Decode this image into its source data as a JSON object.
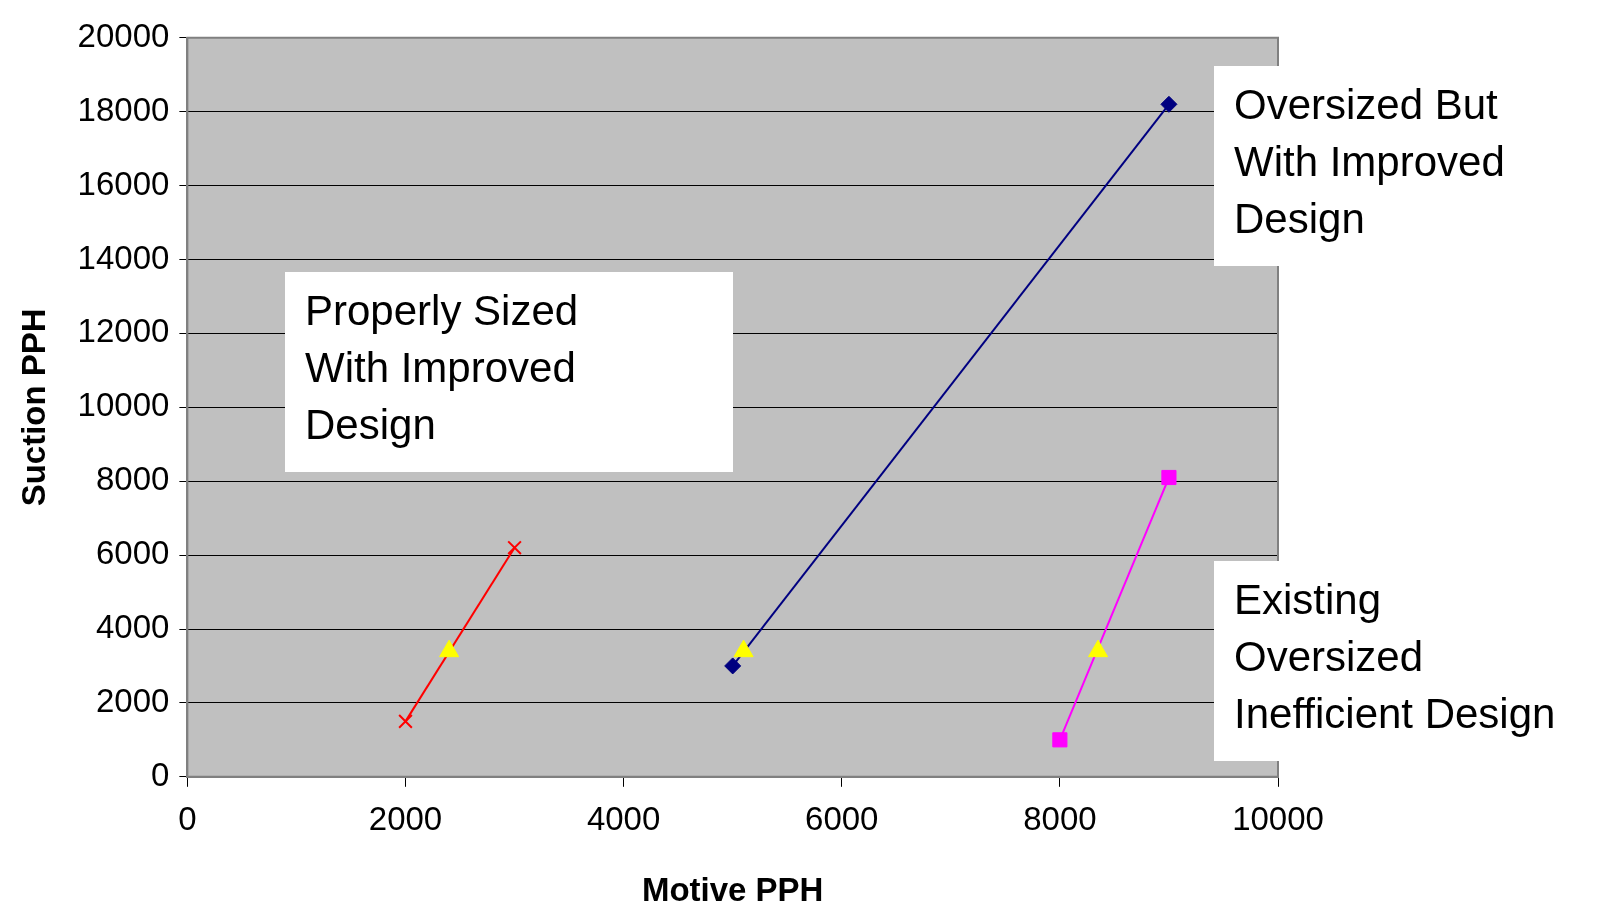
{
  "chart_data": {
    "type": "line",
    "xlabel": "Motive PPH",
    "ylabel": "Suction PPH",
    "xlim": [
      0,
      10000
    ],
    "xticks": [
      0,
      2000,
      4000,
      6000,
      8000,
      10000
    ],
    "ylim": [
      0,
      20000
    ],
    "yticks": [
      0,
      2000,
      4000,
      6000,
      8000,
      10000,
      12000,
      14000,
      16000,
      18000,
      20000
    ],
    "grid": "y",
    "legend": false,
    "annotations": [
      "Properly Sized With Improved Design",
      "Oversized But With Improved Design",
      "Existing Oversized Inefficient Design"
    ],
    "series": [
      {
        "color": "#ff0000",
        "marker": "cross",
        "x": [
          2000,
          3000
        ],
        "values": [
          1500,
          6200
        ]
      },
      {
        "color": "#000080",
        "marker": "diamond",
        "x": [
          5000,
          9000
        ],
        "values": [
          3000,
          18200
        ]
      },
      {
        "color": "#ff00ff",
        "marker": "square",
        "x": [
          8000,
          9000
        ],
        "values": [
          1000,
          8100
        ]
      },
      {
        "type": "scatter",
        "color": "#ffff00",
        "marker": "triangle",
        "x": [
          2400,
          5100,
          8350
        ],
        "values": [
          3400,
          3400,
          3400
        ]
      }
    ]
  }
}
